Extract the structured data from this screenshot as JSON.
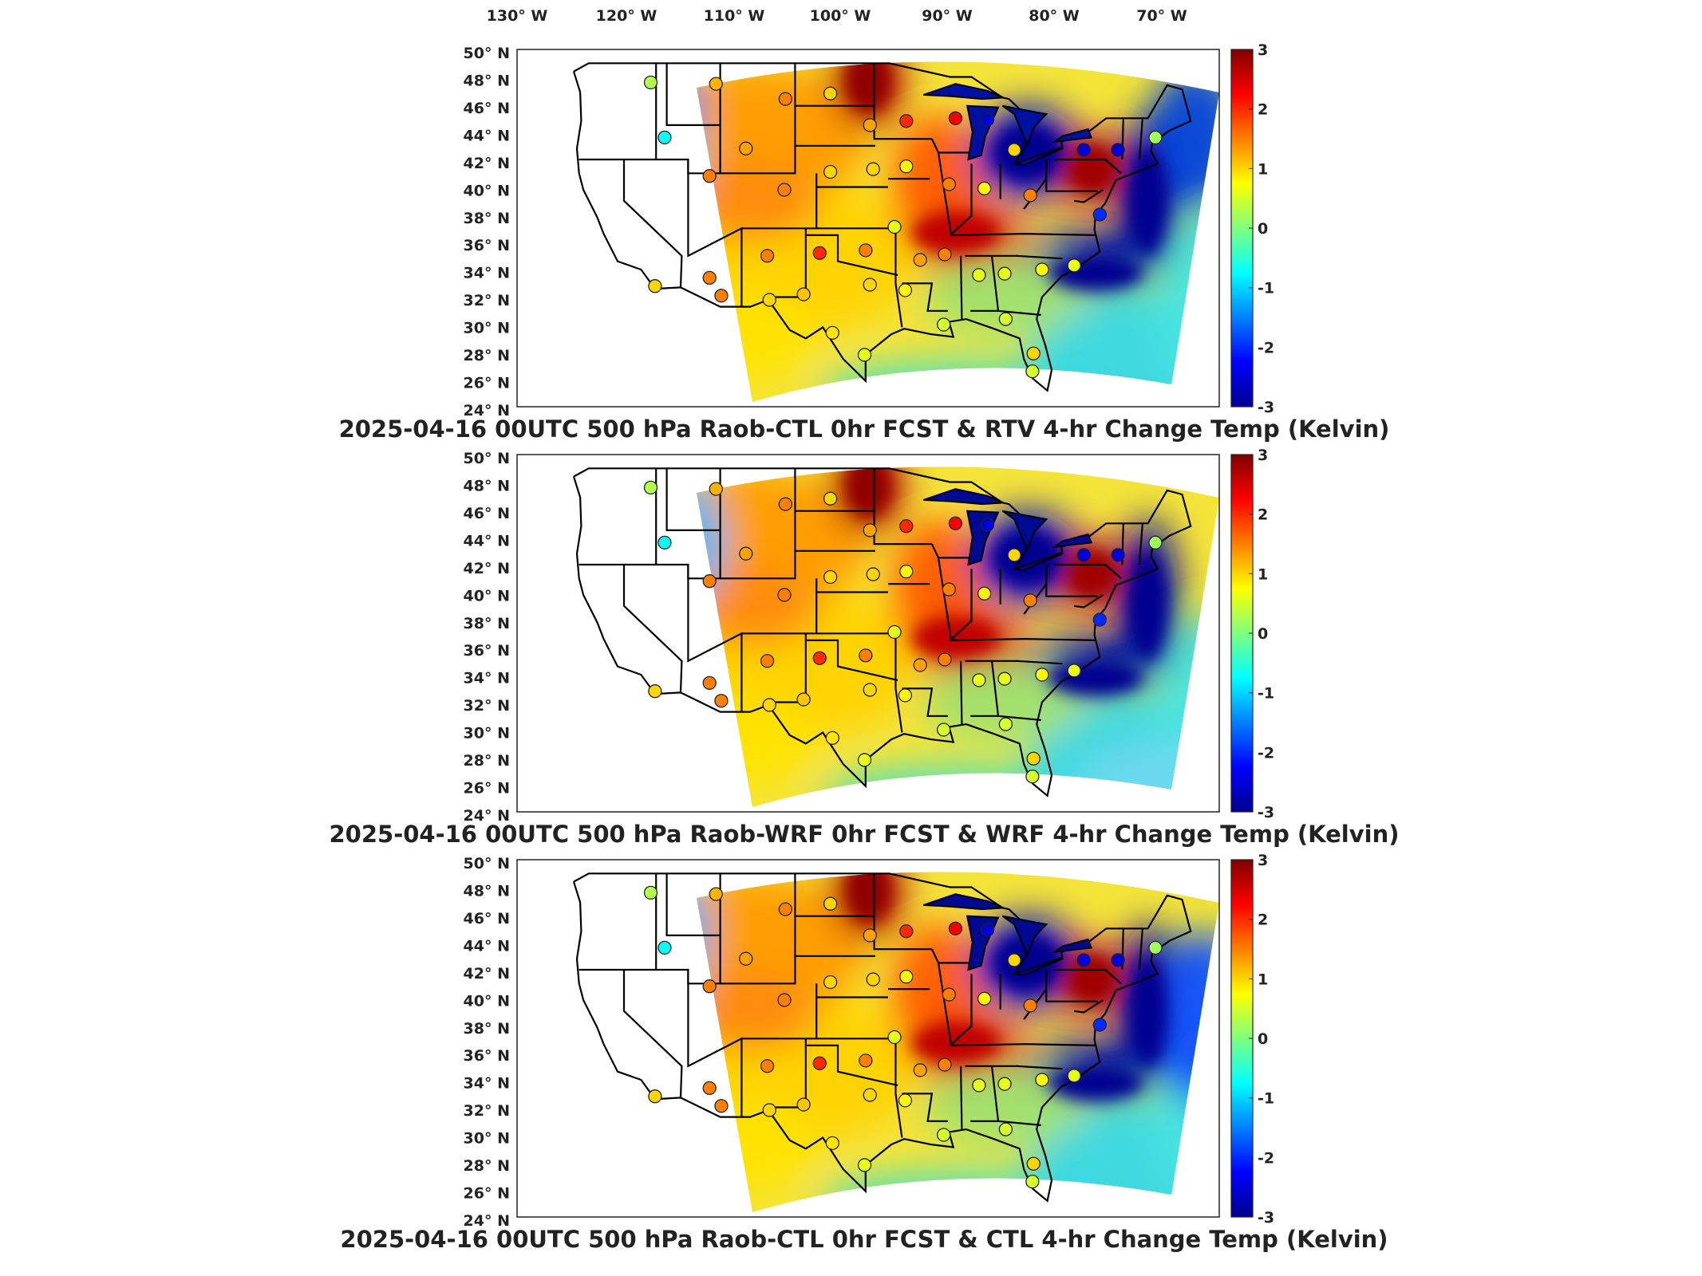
{
  "figure": {
    "lon_labels": [
      "130° W",
      "120° W",
      "110° W",
      "100° W",
      "90° W",
      "80° W",
      "70° W"
    ],
    "lat_labels": [
      "50° N",
      "48° N",
      "46° N",
      "44° N",
      "42° N",
      "40° N",
      "38° N",
      "36° N",
      "34° N",
      "32° N",
      "30° N",
      "28° N",
      "26° N",
      "24° N"
    ],
    "colorbar": {
      "label_values": [
        "3",
        "2",
        "1",
        "0",
        "-1",
        "-2",
        "-3"
      ],
      "vmin": -3,
      "vmax": 3,
      "colormap": "jet"
    },
    "panels": [
      {
        "title": "2025-04-16 00UTC 500 hPa Raob-CTL 0hr FCST & RTV 4-hr Change Temp (Kelvin)"
      },
      {
        "title": "2025-04-16 00UTC 500 hPa Raob-WRF 0hr FCST & WRF 4-hr Change Temp (Kelvin)"
      },
      {
        "title": "2025-04-16 00UTC 500 hPa Raob-CTL 0hr FCST & CTL 4-hr Change Temp (Kelvin)"
      }
    ]
  }
}
